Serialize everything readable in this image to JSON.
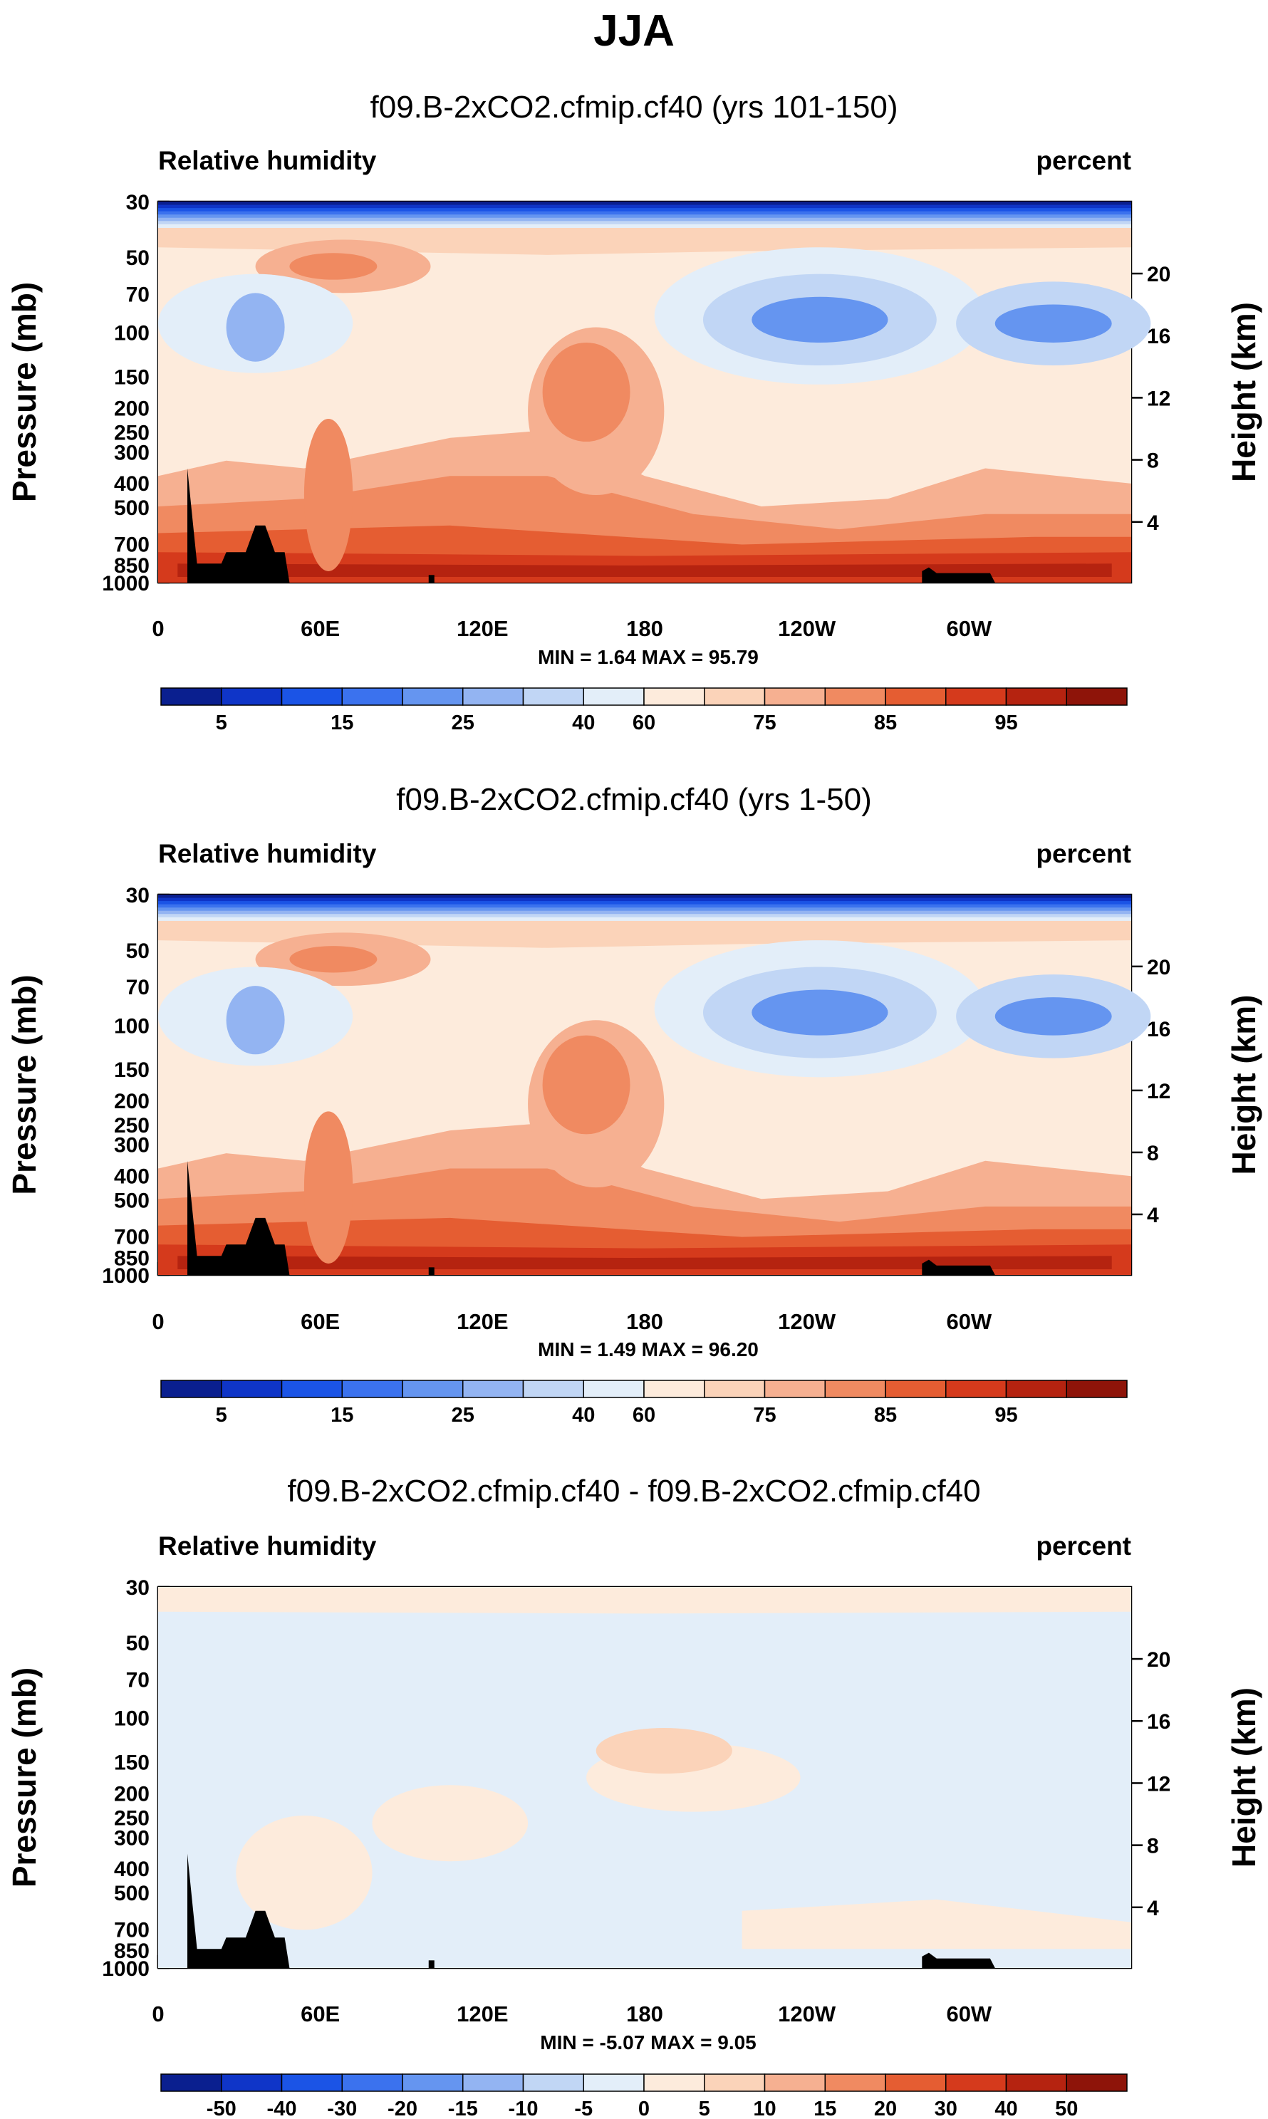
{
  "page_title": "JJA",
  "colors": {
    "frame": "#000000",
    "land": "#000000",
    "text": "#000000"
  },
  "chart_data": [
    {
      "type": "heatmap",
      "title": "f09.B-2xCO2.cfmip.cf40 (yrs 101-150)",
      "left_label": "Relative humidity",
      "right_label": "percent",
      "ylabel": "Pressure (mb)",
      "ylabel_right": "Height (km)",
      "x_ticks": [
        "0",
        "60E",
        "120E",
        "180",
        "120W",
        "60W"
      ],
      "pressure_ticks": [
        "30",
        "50",
        "70",
        "100",
        "150",
        "200",
        "250",
        "300",
        "400",
        "500",
        "700",
        "850",
        "1000"
      ],
      "height_ticks": [
        "20",
        "16",
        "12",
        "8",
        "4"
      ],
      "min_label": "MIN =",
      "min": "1.64",
      "max_label": "MAX =",
      "max": "95.79",
      "colorbar_labels": [
        "5",
        "15",
        "25",
        "40",
        "60",
        "75",
        "85",
        "95"
      ],
      "colorbar_colors": [
        "#0a1f8f",
        "#0f35c8",
        "#1b54e6",
        "#3b72ee",
        "#6595f0",
        "#93b4f2",
        "#c1d6f5",
        "#e3eef9",
        "#fdebdc",
        "#fbd3b9",
        "#f6b091",
        "#f08a61",
        "#e55d32",
        "#d53a1c",
        "#b52310",
        "#8e1409"
      ],
      "levels": [
        "dark",
        "blue1",
        "blue2",
        "blue3",
        "blue4",
        "blue5",
        "blue6",
        "blue7",
        "tan1",
        "tan2",
        "tan3",
        "tan4",
        "red1",
        "red2",
        "red3",
        "red4"
      ]
    },
    {
      "type": "heatmap",
      "title": "f09.B-2xCO2.cfmip.cf40 (yrs 1-50)",
      "left_label": "Relative humidity",
      "right_label": "percent",
      "ylabel": "Pressure (mb)",
      "ylabel_right": "Height (km)",
      "x_ticks": [
        "0",
        "60E",
        "120E",
        "180",
        "120W",
        "60W"
      ],
      "pressure_ticks": [
        "30",
        "50",
        "70",
        "100",
        "150",
        "200",
        "250",
        "300",
        "400",
        "500",
        "700",
        "850",
        "1000"
      ],
      "height_ticks": [
        "20",
        "16",
        "12",
        "8",
        "4"
      ],
      "min_label": "MIN =",
      "min": "1.49",
      "max_label": "MAX =",
      "max": "96.20",
      "colorbar_labels": [
        "5",
        "15",
        "25",
        "40",
        "60",
        "75",
        "85",
        "95"
      ],
      "colorbar_colors": [
        "#0a1f8f",
        "#0f35c8",
        "#1b54e6",
        "#3b72ee",
        "#6595f0",
        "#93b4f2",
        "#c1d6f5",
        "#e3eef9",
        "#fdebdc",
        "#fbd3b9",
        "#f6b091",
        "#f08a61",
        "#e55d32",
        "#d53a1c",
        "#b52310",
        "#8e1409"
      ]
    },
    {
      "type": "heatmap",
      "title": "f09.B-2xCO2.cfmip.cf40 - f09.B-2xCO2.cfmip.cf40",
      "left_label": "Relative humidity",
      "right_label": "percent",
      "ylabel": "Pressure (mb)",
      "ylabel_right": "Height (km)",
      "x_ticks": [
        "0",
        "60E",
        "120E",
        "180",
        "120W",
        "60W"
      ],
      "pressure_ticks": [
        "30",
        "50",
        "70",
        "100",
        "150",
        "200",
        "250",
        "300",
        "400",
        "500",
        "700",
        "850",
        "1000"
      ],
      "height_ticks": [
        "20",
        "16",
        "12",
        "8",
        "4"
      ],
      "min_label": "MIN =",
      "min": "-5.07",
      "max_label": "MAX =",
      "max": "9.05",
      "colorbar_labels": [
        "-50",
        "-40",
        "-30",
        "-20",
        "-15",
        "-10",
        "-5",
        "0",
        "5",
        "10",
        "15",
        "20",
        "30",
        "40",
        "50"
      ],
      "colorbar_colors": [
        "#0a1f8f",
        "#0f35c8",
        "#1b54e6",
        "#3b72ee",
        "#6595f0",
        "#93b4f2",
        "#c1d6f5",
        "#e3eef9",
        "#fdebdc",
        "#fbd3b9",
        "#f6b091",
        "#f08a61",
        "#e55d32",
        "#d53a1c",
        "#b52310",
        "#8e1409"
      ]
    }
  ]
}
